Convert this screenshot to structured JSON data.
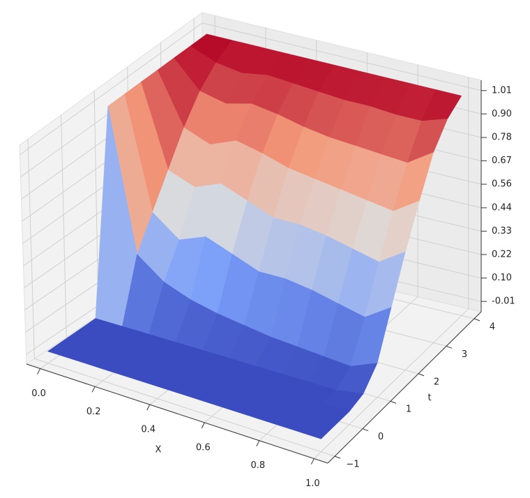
{
  "chart_data": {
    "type": "surface",
    "xlabel": "X",
    "ylabel": "t",
    "x": [
      0,
      0.1,
      0.2,
      0.3,
      0.4,
      0.5,
      0.6,
      0.7,
      0.8,
      0.9,
      1
    ],
    "t": [
      -1,
      -0.5,
      0,
      0.5,
      1,
      1.5,
      2,
      2.5,
      3,
      3.5,
      4
    ],
    "z": [
      [
        0,
        0,
        0,
        0,
        0,
        0,
        0,
        0,
        0,
        0,
        0
      ],
      [
        0,
        0,
        0,
        0,
        0,
        0,
        0,
        0,
        0,
        0,
        0
      ],
      [
        0,
        0,
        0,
        0,
        0,
        0,
        0,
        0,
        0,
        0,
        0
      ],
      [
        0,
        0,
        0,
        0,
        0,
        0,
        0,
        0,
        0,
        0,
        0.02
      ],
      [
        1,
        0.3,
        0.2,
        0.15,
        0.12,
        0.1,
        0.08,
        0.07,
        0.06,
        0.05,
        0.1
      ],
      [
        1,
        0.45,
        0.35,
        0.4,
        0.35,
        0.3,
        0.3,
        0.28,
        0.25,
        0.22,
        0.3
      ],
      [
        1,
        0.6,
        0.55,
        0.6,
        0.55,
        0.5,
        0.5,
        0.48,
        0.45,
        0.42,
        0.5
      ],
      [
        1,
        0.75,
        0.7,
        0.75,
        0.72,
        0.68,
        0.66,
        0.64,
        0.62,
        0.6,
        0.68
      ],
      [
        1,
        0.87,
        0.84,
        0.87,
        0.85,
        0.82,
        0.8,
        0.79,
        0.78,
        0.77,
        0.85
      ],
      [
        1,
        0.95,
        0.93,
        0.95,
        0.94,
        0.93,
        0.92,
        0.92,
        0.91,
        0.91,
        0.95
      ],
      [
        1,
        1,
        1,
        1,
        1,
        1,
        1,
        1,
        1,
        1,
        1
      ]
    ],
    "xlim": [
      -0.05,
      1.05
    ],
    "ylim": [
      -1.25,
      4.25
    ],
    "zlim": [
      -0.06,
      1.06
    ],
    "xticks": [
      {
        "value": 0,
        "label": "0.0"
      },
      0.2,
      0.4,
      0.6,
      0.8,
      {
        "value": 1,
        "label": "1.0"
      }
    ],
    "yticks": [
      {
        "value": -1,
        "label": "−1"
      },
      0,
      1,
      2,
      3,
      4
    ],
    "zticks": [
      -0.01,
      {
        "value": 0.103,
        "label": "0.10"
      },
      {
        "value": 0.217,
        "label": "0.22"
      },
      0.33,
      {
        "value": 0.443,
        "label": "0.44"
      },
      {
        "value": 0.557,
        "label": "0.56"
      },
      0.67,
      {
        "value": 0.783,
        "label": "0.78"
      },
      {
        "value": 0.897,
        "label": "0.90"
      },
      1.01
    ],
    "colormap": "coolwarm",
    "grid": true
  }
}
